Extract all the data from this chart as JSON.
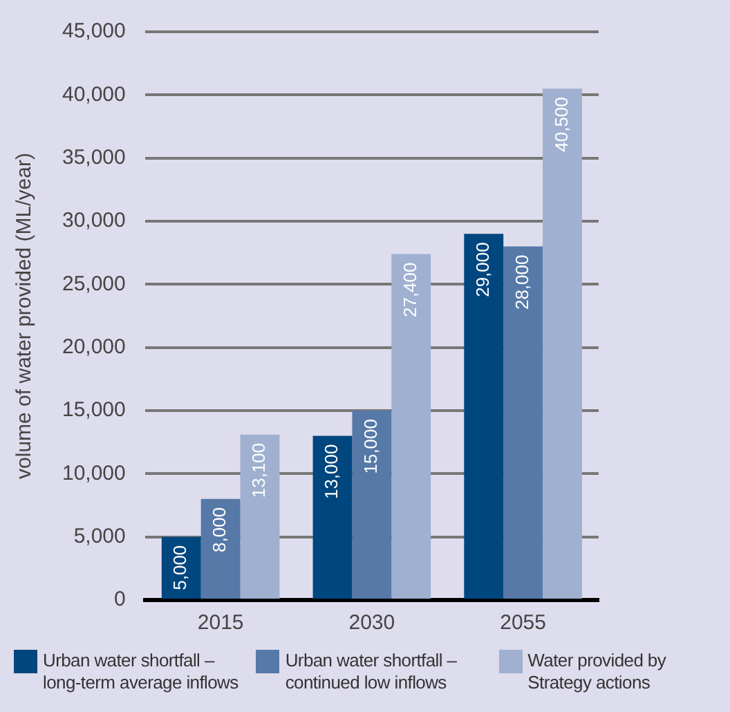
{
  "chart_data": {
    "type": "bar",
    "ylabel": "volume of water provided (ML/year)",
    "categories": [
      "2015",
      "2030",
      "2055"
    ],
    "series": [
      {
        "name": "Urban water shortfall – long-term average inflows",
        "color": "#00467f",
        "values": [
          5000,
          13000,
          29000
        ],
        "value_labels": [
          "5,000",
          "13,000",
          "29,000"
        ]
      },
      {
        "name": "Urban water shortfall – continued low inflows",
        "color": "#5679a8",
        "values": [
          8000,
          15000,
          28000
        ],
        "value_labels": [
          "8,000",
          "15,000",
          "28,000"
        ]
      },
      {
        "name": "Water provided by Strategy actions",
        "color": "#9fb0d0",
        "values": [
          13100,
          27400,
          40500
        ],
        "value_labels": [
          "13,100",
          "27,400",
          "40,500"
        ]
      }
    ],
    "ylim": [
      0,
      45000
    ],
    "yticks": [
      0,
      {
        "value": 5000,
        "label": "5,000"
      },
      {
        "value": 10000,
        "label": "10,000"
      },
      {
        "value": 15000,
        "label": "15,000"
      },
      {
        "value": 20000,
        "label": "20,000"
      },
      {
        "value": 25000,
        "label": "25,000"
      },
      {
        "value": 30000,
        "label": "30,000"
      },
      {
        "value": 35000,
        "label": "35,000"
      },
      {
        "value": 40000,
        "label": "40,000"
      },
      {
        "value": 45000,
        "label": "45,000"
      }
    ],
    "grid": "y",
    "legend": "bottom"
  }
}
